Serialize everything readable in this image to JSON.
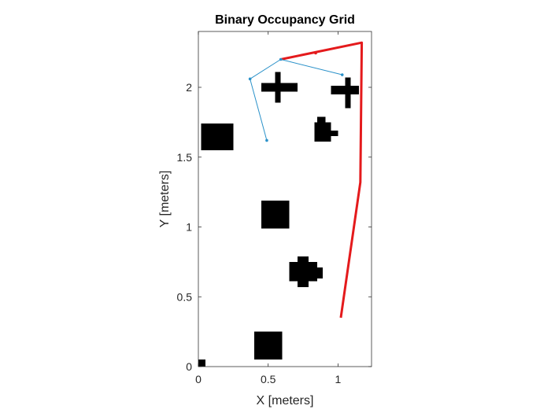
{
  "chart_data": {
    "type": "occupancy-grid",
    "title": "Binary Occupancy Grid",
    "xlabel": "X [meters]",
    "ylabel": "Y [meters]",
    "xlim": [
      0,
      1.24
    ],
    "ylim": [
      0,
      2.4
    ],
    "xticks": [
      0,
      0.5,
      1
    ],
    "xtick_labels": [
      "0",
      "0.5",
      "1"
    ],
    "yticks": [
      0,
      0.5,
      1,
      1.5,
      2
    ],
    "ytick_labels": [
      "0",
      "0.5",
      "1",
      "1.5",
      "2"
    ],
    "grid": false,
    "resolution_m": 0.02,
    "obstacles": [
      {
        "name": "corner-cell",
        "rects": [
          [
            0,
            0,
            0.05,
            0.05
          ]
        ]
      },
      {
        "name": "square-bottom",
        "rects": [
          [
            0.4,
            0.05,
            0.6,
            0.25
          ]
        ]
      },
      {
        "name": "blob-lower",
        "rects": [
          [
            0.71,
            0.57,
            0.79,
            0.79
          ],
          [
            0.65,
            0.61,
            0.85,
            0.75
          ],
          [
            0.85,
            0.63,
            0.89,
            0.71
          ]
        ]
      },
      {
        "name": "square-middle",
        "rects": [
          [
            0.45,
            0.99,
            0.65,
            1.19
          ]
        ]
      },
      {
        "name": "square-left",
        "rects": [
          [
            0.02,
            1.55,
            0.25,
            1.74
          ]
        ]
      },
      {
        "name": "blob-upper",
        "rects": [
          [
            0.83,
            1.61,
            0.95,
            1.75
          ],
          [
            0.85,
            1.75,
            0.91,
            1.79
          ],
          [
            0.95,
            1.65,
            1.0,
            1.69
          ]
        ]
      },
      {
        "name": "cross-left",
        "rects": [
          [
            0.55,
            1.89,
            0.59,
            2.11
          ],
          [
            0.45,
            1.97,
            0.71,
            2.03
          ]
        ]
      },
      {
        "name": "cross-right",
        "rects": [
          [
            1.05,
            1.85,
            1.09,
            2.07
          ],
          [
            0.95,
            1.95,
            1.15,
            2.01
          ]
        ]
      }
    ],
    "series": [
      {
        "color": "#e41a1c",
        "width": 3,
        "x": [
          1.02,
          1.16,
          1.17,
          0.59
        ],
        "y": [
          0.35,
          1.32,
          2.32,
          2.2
        ],
        "markers_x": [
          0.84
        ],
        "markers_y": [
          2.245
        ]
      },
      {
        "color": "#2a91c9",
        "width": 1,
        "x": [
          1.03,
          0.59,
          0.37,
          0.49
        ],
        "y": [
          2.09,
          2.2,
          2.06,
          1.62
        ],
        "markers_x": [
          1.03,
          0.59,
          0.37,
          0.49
        ],
        "markers_y": [
          2.09,
          2.2,
          2.06,
          1.62
        ]
      }
    ]
  }
}
